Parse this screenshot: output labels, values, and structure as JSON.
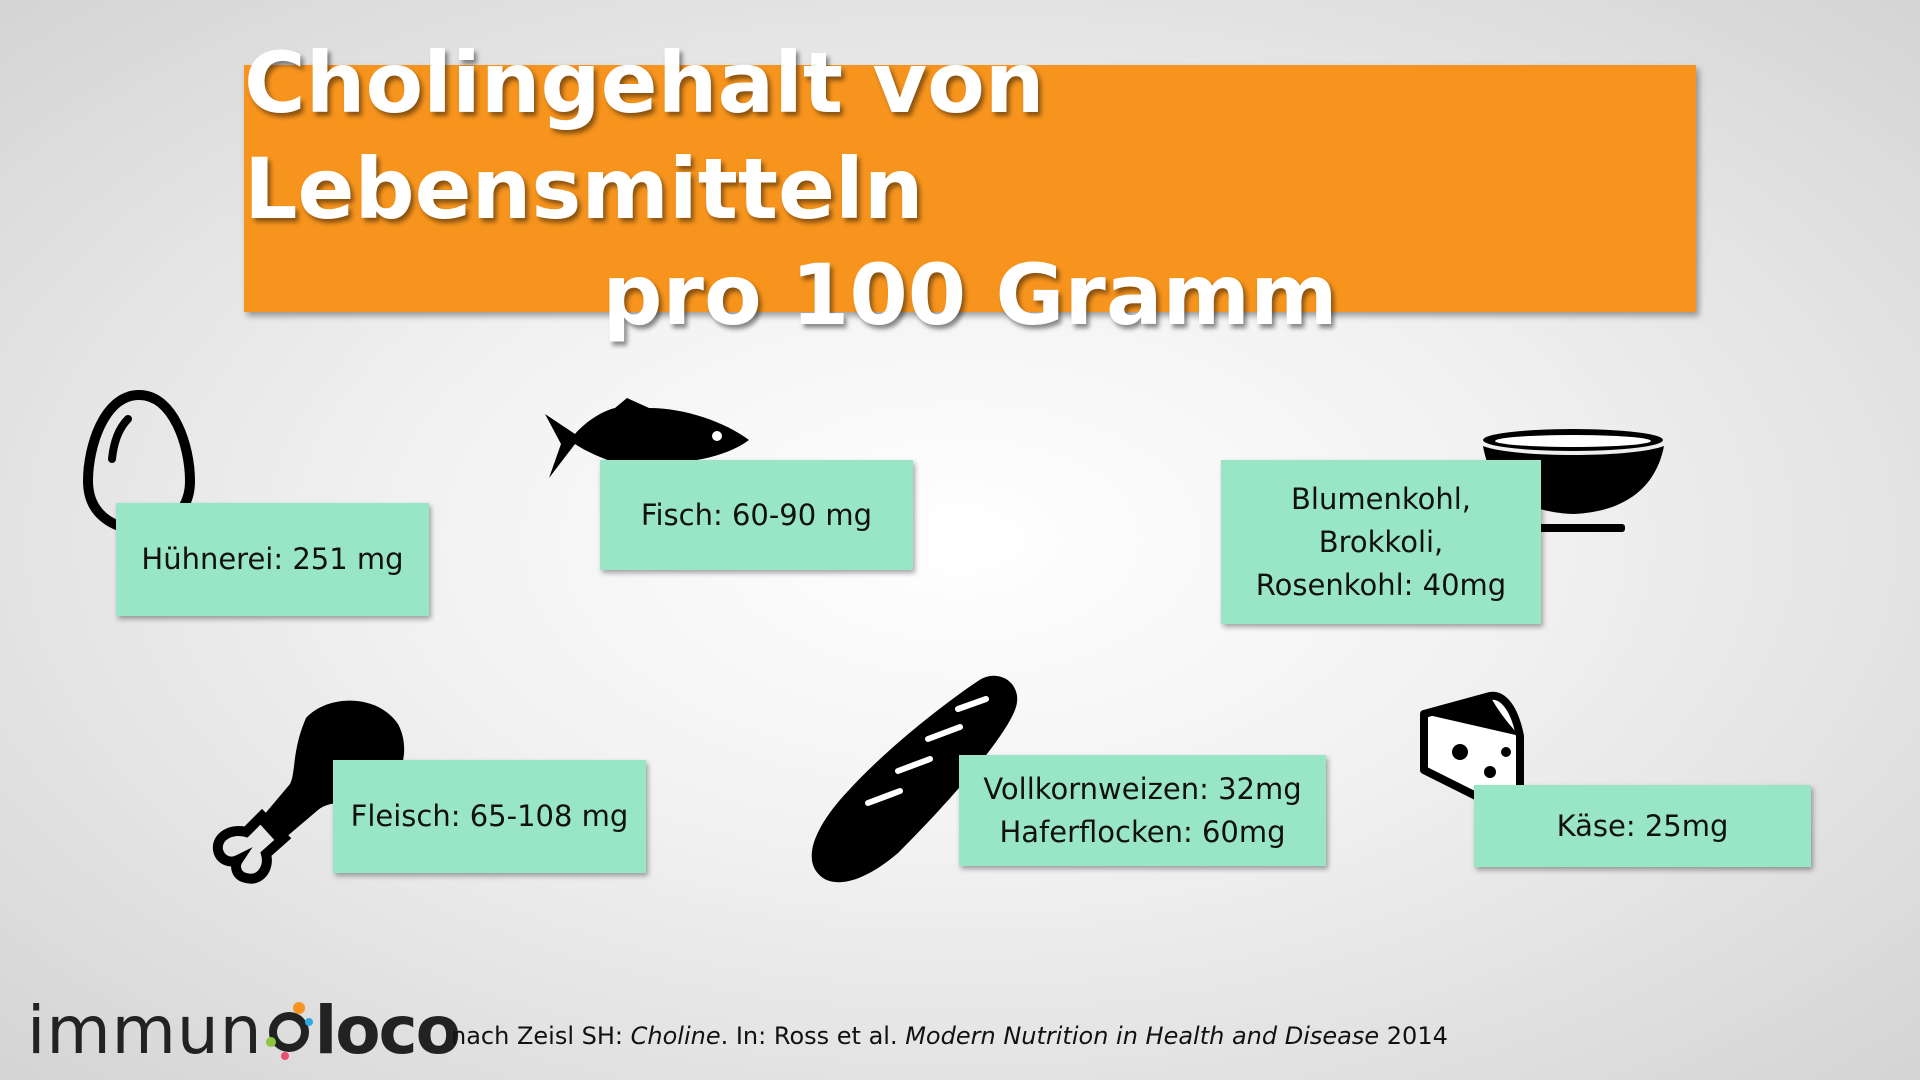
{
  "header": {
    "title_lines": [
      "Cholingehalt von Lebensmitteln",
      "pro 100 Gramm"
    ]
  },
  "items": [
    {
      "label_lines": [
        "Hühnerei: 251 mg"
      ]
    },
    {
      "label_lines": [
        "Fisch: 60-90 mg"
      ]
    },
    {
      "label_lines": [
        "Blumenkohl,",
        "Brokkoli,",
        "Rosenkohl: 40mg"
      ]
    },
    {
      "label_lines": [
        "Fleisch: 65-108 mg"
      ]
    },
    {
      "label_lines": [
        "Vollkornweizen: 32mg",
        "Haferflocken: 60mg"
      ]
    },
    {
      "label_lines": [
        "Käse: 25mg"
      ]
    }
  ],
  "footer": {
    "logo": {
      "left": "immun",
      "right": "loco"
    },
    "citation": {
      "prefix": "nach Zeisl SH: ",
      "chapter": "Choline",
      "middle": ". In: Ross et al. ",
      "book": "Modern Nutrition in Health and Disease",
      "year": " 2014"
    }
  }
}
